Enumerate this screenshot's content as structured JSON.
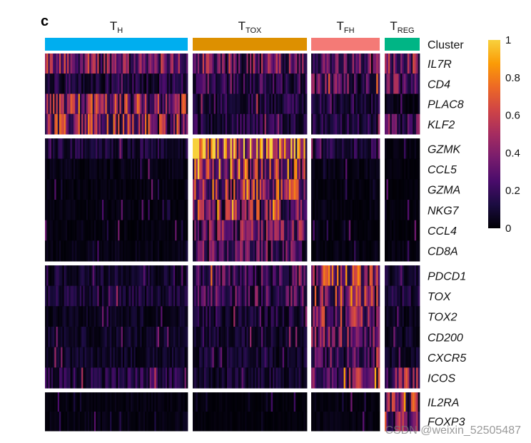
{
  "panel_label": "c",
  "watermark": "CSDN @weixin_52505487",
  "chart_data": {
    "type": "heatmap",
    "title": "",
    "columns": [
      {
        "base": "T",
        "sub": "H",
        "color": "#00aeef",
        "cells": 90
      },
      {
        "base": "T",
        "sub": "TOX",
        "color": "#dd9000",
        "cells": 70
      },
      {
        "base": "T",
        "sub": "FH",
        "color": "#f47a76",
        "cells": 40
      },
      {
        "base": "T",
        "sub": "REG",
        "color": "#00b585",
        "cells": 20
      }
    ],
    "cluster_label": "Cluster",
    "gene_groups": [
      {
        "genes": [
          "IL7R",
          "CD4",
          "PLAC8",
          "KLF2"
        ],
        "mean_expression": [
          [
            0.4,
            0.35,
            0.3,
            0.4
          ],
          [
            0.15,
            0.2,
            0.3,
            0.3
          ],
          [
            0.45,
            0.15,
            0.15,
            0.05
          ],
          [
            0.45,
            0.15,
            0.15,
            0.25
          ]
        ]
      },
      {
        "genes": [
          "GZMK",
          "CCL5",
          "GZMA",
          "NKG7",
          "CCL4",
          "CD8A"
        ],
        "mean_expression": [
          [
            0.12,
            0.85,
            0.15,
            0.03
          ],
          [
            0.04,
            0.55,
            0.04,
            0.02
          ],
          [
            0.03,
            0.5,
            0.03,
            0.02
          ],
          [
            0.03,
            0.45,
            0.03,
            0.02
          ],
          [
            0.03,
            0.35,
            0.03,
            0.02
          ],
          [
            0.04,
            0.3,
            0.04,
            0.03
          ]
        ]
      },
      {
        "genes": [
          "PDCD1",
          "TOX",
          "TOX2",
          "CD200",
          "CXCR5",
          "ICOS"
        ],
        "mean_expression": [
          [
            0.1,
            0.25,
            0.5,
            0.1
          ],
          [
            0.12,
            0.25,
            0.45,
            0.12
          ],
          [
            0.06,
            0.12,
            0.4,
            0.06
          ],
          [
            0.08,
            0.1,
            0.35,
            0.08
          ],
          [
            0.08,
            0.1,
            0.3,
            0.08
          ],
          [
            0.15,
            0.1,
            0.4,
            0.4
          ]
        ]
      },
      {
        "genes": [
          "IL2RA",
          "FOXP3"
        ],
        "mean_expression": [
          [
            0.03,
            0.02,
            0.03,
            0.45
          ],
          [
            0.04,
            0.02,
            0.03,
            0.4
          ]
        ]
      }
    ],
    "colorbar": {
      "range": [
        0,
        1
      ],
      "ticks": [
        "0",
        "0.2",
        "0.4",
        "0.6",
        "0.8",
        "1"
      ],
      "colors": [
        "#000004",
        "#1b0c41",
        "#4a0c6b",
        "#781c6d",
        "#a52c60",
        "#cf4446",
        "#ed6925",
        "#fb9b06",
        "#f7d13d"
      ]
    }
  }
}
